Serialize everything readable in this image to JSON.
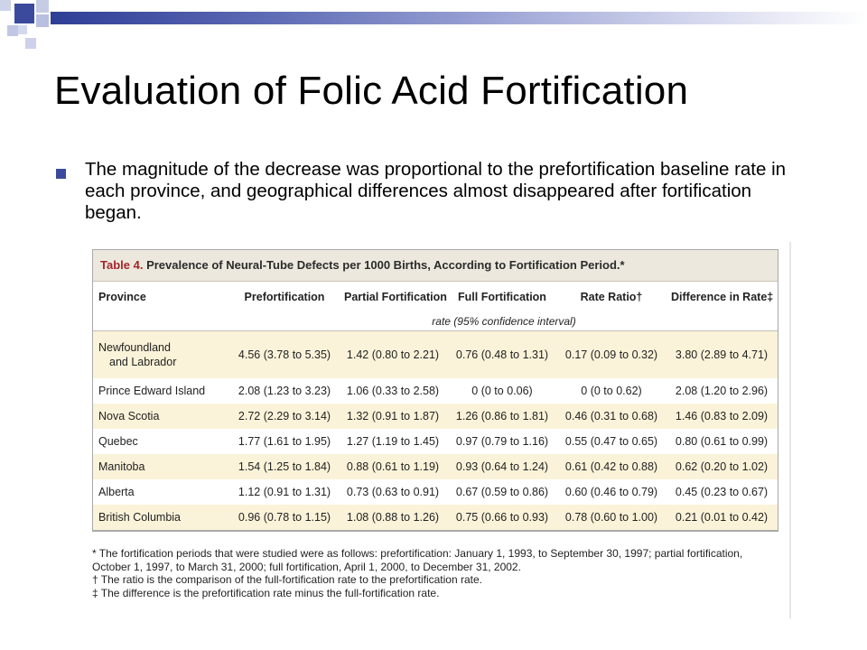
{
  "colors": {
    "accent": "#3b4a9c",
    "table_caption_bg": "#ede8dd",
    "table_number": "#a3262a",
    "row_shade": "#fbf3d9"
  },
  "slide": {
    "title": "Evaluation of Folic Acid Fortification",
    "bullet_text": "The magnitude of the decrease was proportional to the prefortification baseline rate in each province, and geographical differences almost disappeared after fortification began."
  },
  "table": {
    "number_label": "Table 4.",
    "caption": "Prevalence of Neural-Tube Defects per 1000 Births, According to Fortification Period.*",
    "columns": [
      "Province",
      "Prefortification",
      "Partial Fortification",
      "Full Fortification",
      "Rate Ratio†",
      "Difference in Rate‡"
    ],
    "subheader": "rate (95% confidence interval)",
    "rows": [
      {
        "province_line1": "Newfoundland",
        "province_line2": "and Labrador",
        "pre": "4.56 (3.78 to 5.35)",
        "partial": "1.42 (0.80 to 2.21)",
        "full": "0.76 (0.48 to 1.31)",
        "ratio": "0.17 (0.09 to 0.32)",
        "diff": "3.80 (2.89 to 4.71)"
      },
      {
        "province": "Prince Edward Island",
        "pre": "2.08 (1.23 to 3.23)",
        "partial": "1.06 (0.33 to 2.58)",
        "full": "0 (0 to 0.06)",
        "ratio": "0 (0 to 0.62)",
        "diff": "2.08 (1.20 to 2.96)"
      },
      {
        "province": "Nova Scotia",
        "pre": "2.72 (2.29 to 3.14)",
        "partial": "1.32 (0.91 to 1.87)",
        "full": "1.26 (0.86 to 1.81)",
        "ratio": "0.46 (0.31 to 0.68)",
        "diff": "1.46 (0.83 to 2.09)"
      },
      {
        "province": "Quebec",
        "pre": "1.77 (1.61 to 1.95)",
        "partial": "1.27 (1.19 to 1.45)",
        "full": "0.97 (0.79 to 1.16)",
        "ratio": "0.55 (0.47 to 0.65)",
        "diff": "0.80 (0.61 to 0.99)"
      },
      {
        "province": "Manitoba",
        "pre": "1.54 (1.25 to 1.84)",
        "partial": "0.88 (0.61 to 1.19)",
        "full": "0.93 (0.64 to 1.24)",
        "ratio": "0.61 (0.42 to 0.88)",
        "diff": "0.62 (0.20 to 1.02)"
      },
      {
        "province": "Alberta",
        "pre": "1.12 (0.91 to 1.31)",
        "partial": "0.73 (0.63 to 0.91)",
        "full": "0.67 (0.59 to 0.86)",
        "ratio": "0.60 (0.46 to 0.79)",
        "diff": "0.45 (0.23 to 0.67)"
      },
      {
        "province": "British Columbia",
        "pre": "0.96 (0.78 to 1.15)",
        "partial": "1.08 (0.88 to 1.26)",
        "full": "0.75 (0.66 to 0.93)",
        "ratio": "0.78 (0.60 to 1.00)",
        "diff": "0.21 (0.01 to 0.42)"
      }
    ],
    "footnotes": [
      "* The fortification periods that were studied were as follows: prefortification: January 1, 1993, to September 30, 1997; partial fortification, October 1, 1997, to March 31, 2000; full fortification, April 1, 2000, to December 31, 2002.",
      "† The ratio is the comparison of the full-fortification rate to the prefortification rate.",
      "‡ The difference is the prefortification rate minus the full-fortification rate."
    ]
  }
}
